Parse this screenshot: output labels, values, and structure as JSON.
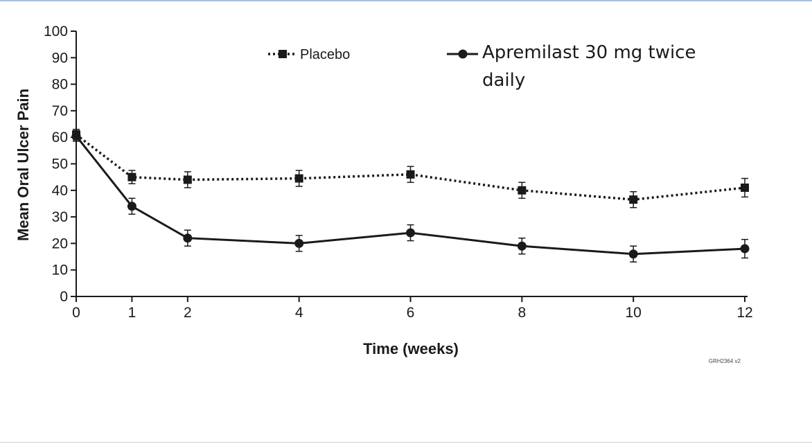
{
  "chart_data": {
    "type": "line",
    "title": "",
    "xlabel": "Time (weeks)",
    "ylabel": "Mean Oral Ulcer Pain",
    "xlim": [
      0,
      12
    ],
    "ylim": [
      0,
      100
    ],
    "x_ticks": [
      0,
      1,
      2,
      4,
      6,
      8,
      10,
      12
    ],
    "y_ticks": [
      0,
      10,
      20,
      30,
      40,
      50,
      60,
      70,
      80,
      90,
      100
    ],
    "grid": false,
    "legend_position": "top",
    "series": [
      {
        "name": "Placebo",
        "style": "dotted",
        "marker": "square",
        "x": [
          0,
          1,
          2,
          4,
          6,
          8,
          10,
          12
        ],
        "values": [
          61,
          45,
          44,
          44.5,
          46,
          40,
          36.5,
          41
        ],
        "err": [
          2,
          2.5,
          3,
          3,
          3,
          3,
          3,
          3.5
        ]
      },
      {
        "name": "Apremilast 30 mg twice daily",
        "style": "solid",
        "marker": "circle",
        "x": [
          0,
          1,
          2,
          4,
          6,
          8,
          10,
          12
        ],
        "values": [
          60.5,
          34,
          22,
          20,
          24,
          19,
          16,
          18
        ],
        "err": [
          2,
          3,
          3,
          3,
          3,
          3,
          3,
          3.5
        ]
      }
    ],
    "legend": {
      "placebo_label": "Placebo",
      "apremilast_line1": "Apremilast 30 mg twice",
      "apremilast_line2": "daily"
    },
    "figure_code": "GRH2364 v2"
  },
  "colors": {
    "ink": "#1a1a1a",
    "top_rule": "#9dc3e6"
  }
}
